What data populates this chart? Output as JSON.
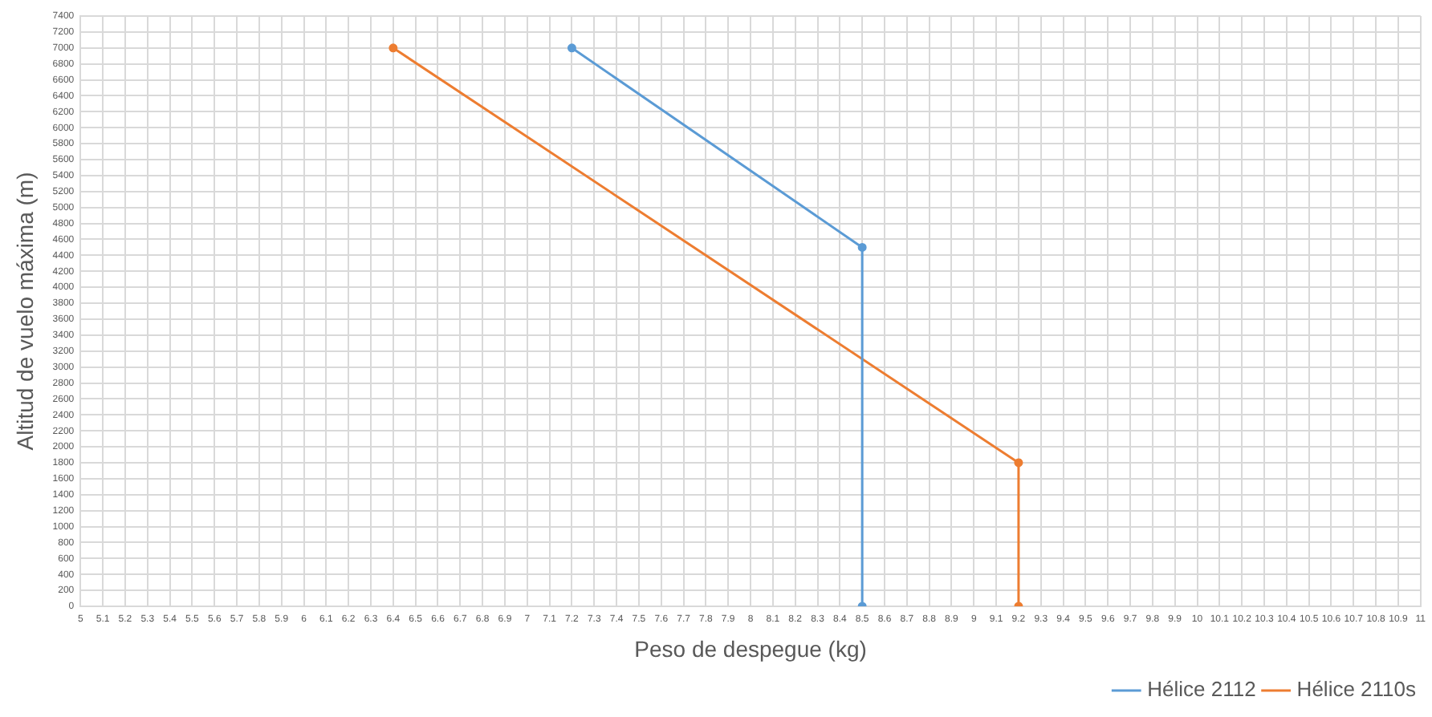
{
  "chart_data": {
    "type": "line",
    "xlabel": "Peso de despegue (kg)",
    "ylabel": "Altitud de vuelo máxima (m)",
    "series": [
      {
        "name": "Hélice 2112",
        "color": "#5b9bd5",
        "x": [
          7.2,
          8.5,
          8.5
        ],
        "values": [
          7000,
          4500,
          0
        ]
      },
      {
        "name": "Hélice 2110s",
        "color": "#ed7d31",
        "x": [
          6.4,
          9.2,
          9.2
        ],
        "values": [
          7000,
          1800,
          0
        ]
      }
    ],
    "xlim": [
      5,
      11
    ],
    "xticks": [
      5,
      5.1,
      5.2,
      5.3,
      5.4,
      5.5,
      5.6,
      5.7,
      5.8,
      5.9,
      6,
      6.1,
      6.2,
      6.3,
      6.4,
      6.5,
      6.6,
      6.7,
      6.8,
      6.9,
      7,
      7.1,
      7.2,
      7.3,
      7.4,
      7.5,
      7.6,
      7.7,
      7.8,
      7.9,
      8,
      8.1,
      8.2,
      8.3,
      8.4,
      8.5,
      8.6,
      8.7,
      8.8,
      8.9,
      9,
      9.1,
      9.2,
      9.3,
      9.4,
      9.5,
      9.6,
      9.7,
      9.8,
      9.9,
      10,
      10.1,
      10.2,
      10.3,
      10.4,
      10.5,
      10.6,
      10.7,
      10.8,
      10.9,
      11
    ],
    "ylim": [
      0,
      7400
    ],
    "yticks": [
      0,
      200,
      400,
      600,
      800,
      1000,
      1200,
      1400,
      1600,
      1800,
      2000,
      2200,
      2400,
      2600,
      2800,
      3000,
      3200,
      3400,
      3600,
      3800,
      4000,
      4200,
      4400,
      4600,
      4800,
      5000,
      5200,
      5400,
      5600,
      5800,
      6000,
      6200,
      6400,
      6600,
      6800,
      7000,
      7200,
      7400
    ],
    "grid": true,
    "legend": "bottom right",
    "marker": "circle",
    "line_style": "solid"
  }
}
